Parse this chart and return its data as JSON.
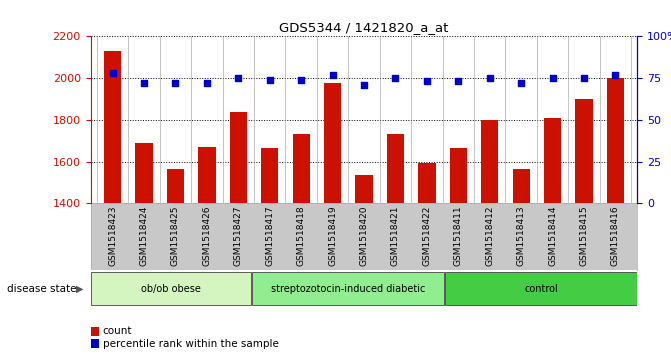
{
  "title": "GDS5344 / 1421820_a_at",
  "samples": [
    "GSM1518423",
    "GSM1518424",
    "GSM1518425",
    "GSM1518426",
    "GSM1518427",
    "GSM1518417",
    "GSM1518418",
    "GSM1518419",
    "GSM1518420",
    "GSM1518421",
    "GSM1518422",
    "GSM1518411",
    "GSM1518412",
    "GSM1518413",
    "GSM1518414",
    "GSM1518415",
    "GSM1518416"
  ],
  "counts": [
    2130,
    1690,
    1565,
    1670,
    1835,
    1665,
    1730,
    1975,
    1535,
    1730,
    1595,
    1665,
    1800,
    1565,
    1810,
    1900,
    2000
  ],
  "percentiles": [
    78,
    72,
    72,
    72,
    75,
    74,
    74,
    77,
    71,
    75,
    73,
    73,
    75,
    72,
    75,
    75,
    77
  ],
  "groups": [
    {
      "label": "ob/ob obese",
      "start": 0,
      "end": 5,
      "color": "#d4f5c0"
    },
    {
      "label": "streptozotocin-induced diabetic",
      "start": 5,
      "end": 11,
      "color": "#90ee90"
    },
    {
      "label": "control",
      "start": 11,
      "end": 17,
      "color": "#44cc44"
    }
  ],
  "ylim_left": [
    1400,
    2200
  ],
  "ylim_right": [
    0,
    100
  ],
  "yticks_left": [
    1400,
    1600,
    1800,
    2000,
    2200
  ],
  "yticks_right": [
    0,
    25,
    50,
    75,
    100
  ],
  "bar_color": "#cc1100",
  "dot_color": "#0000cc",
  "background_color": "#ffffff",
  "tick_area_color": "#c8c8c8",
  "disease_label": "disease state",
  "legend_count": "count",
  "legend_percentile": "percentile rank within the sample"
}
